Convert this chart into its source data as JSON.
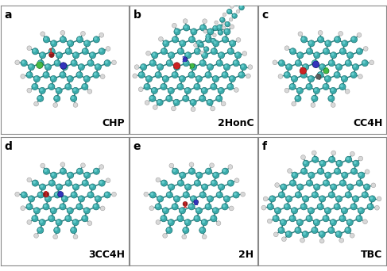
{
  "panels": [
    {
      "label": "a",
      "name": "CHP",
      "row": 0,
      "col": 0
    },
    {
      "label": "b",
      "name": "2HonC",
      "row": 0,
      "col": 1
    },
    {
      "label": "c",
      "name": "CC4H",
      "row": 0,
      "col": 2
    },
    {
      "label": "d",
      "name": "3CC4H",
      "row": 1,
      "col": 0
    },
    {
      "label": "e",
      "name": "2H",
      "row": 1,
      "col": 1
    },
    {
      "label": "f",
      "name": "TBC",
      "row": 1,
      "col": 2
    }
  ],
  "nrows": 2,
  "ncols": 3,
  "bg_color": "#ffffff",
  "label_color": "#000000",
  "name_color": "#000000",
  "label_fontsize": 10,
  "name_fontsize": 9,
  "border_color": "#888888",
  "border_linewidth": 0.8,
  "figsize": [
    4.87,
    3.42
  ],
  "dpi": 100,
  "panel_bg": "#ffffff",
  "teal_C": "#3aabab",
  "teal_C_edge": "#1a7070",
  "teal_C_hi": "#7adada",
  "white_H": "#d8d8d8",
  "white_H_edge": "#999999",
  "bond_color": "#2a8080"
}
